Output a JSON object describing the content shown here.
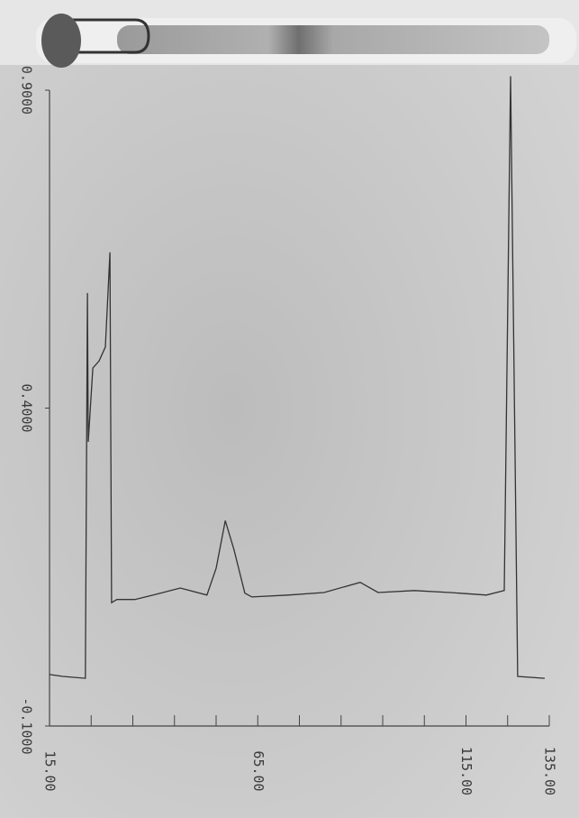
{
  "chart_data": {
    "type": "line",
    "x": [
      15,
      18.2,
      23.6,
      24.1,
      24.3,
      25.4,
      26.9,
      28.4,
      29.5,
      29.9,
      31.2,
      35.5,
      39.9,
      46.4,
      52.8,
      55.0,
      57.2,
      59.3,
      61.9,
      63.6,
      72.3,
      80.9,
      89.6,
      93.9,
      102.6,
      111.2,
      119.9,
      124.2,
      125.7,
      127.4,
      133.9
    ],
    "series": [
      {
        "color": "#333333",
        "values": [
          -0.019,
          -0.022,
          -0.025,
          0.581,
          0.347,
          0.463,
          0.474,
          0.496,
          0.645,
          0.094,
          0.099,
          0.099,
          0.106,
          0.117,
          0.106,
          0.148,
          0.223,
          0.177,
          0.109,
          0.103,
          0.106,
          0.11,
          0.126,
          0.11,
          0.113,
          0.11,
          0.106,
          0.113,
          0.922,
          -0.022,
          -0.025
        ]
      }
    ],
    "xlim": [
      15,
      135
    ],
    "ylim": [
      -0.1,
      0.9
    ],
    "xticks": [
      {
        "value": 15,
        "label": "15.00"
      },
      {
        "value": 65,
        "label": "65.00"
      },
      {
        "value": 115,
        "label": "115.00"
      },
      {
        "value": 135,
        "label": "135.00"
      }
    ],
    "xminorticks": [
      25,
      35,
      45,
      55,
      75,
      85,
      95,
      105,
      125
    ],
    "yticks": [
      {
        "value": -0.1,
        "label": "-0.1000"
      },
      {
        "value": 0.4,
        "label": "0.4000"
      },
      {
        "value": 0.9,
        "label": "0.9000"
      }
    ]
  }
}
